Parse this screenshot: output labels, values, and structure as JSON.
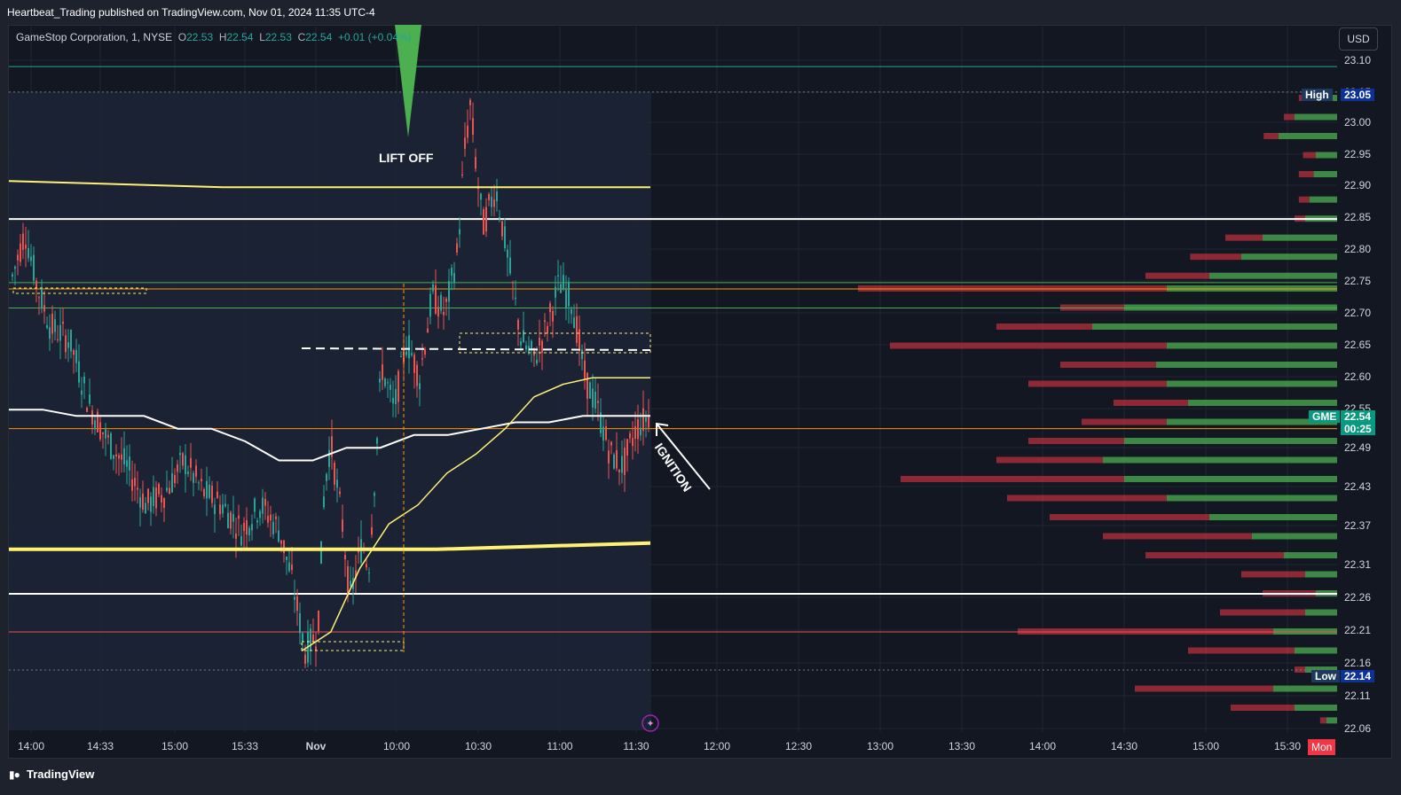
{
  "header": {
    "published_text": "Heartbeat_Trading published on TradingView.com, Nov 01, 2024 11:35 UTC-4"
  },
  "legend": {
    "symbol_text": "GameStop Corporation, 1, NYSE",
    "open_label": "O",
    "open_value": "22.53",
    "high_label": "H",
    "high_value": "22.54",
    "low_label": "L",
    "low_value": "22.53",
    "close_label": "C",
    "close_value": "22.54",
    "change_text": "+0.01 (+0.04%)"
  },
  "currency_button": "USD",
  "annotations": {
    "lift_off": "LIFT OFF",
    "ignition": "IGNITION"
  },
  "price_scale": {
    "ticks": [
      "23.10",
      "23.05",
      "23.00",
      "22.95",
      "22.90",
      "22.85",
      "22.80",
      "22.75",
      "22.70",
      "22.65",
      "22.60",
      "22.55",
      "22.49",
      "22.43",
      "22.37",
      "22.31",
      "22.26",
      "22.21",
      "22.16",
      "22.11",
      "22.06"
    ],
    "high_label": "High",
    "high_value": "23.05",
    "low_label": "Low",
    "low_value": "22.14",
    "symbol_label": "GME",
    "last_price": "22.54",
    "countdown": "00:25"
  },
  "time_scale": {
    "ticks": [
      "14:00",
      "14:33",
      "15:00",
      "15:33",
      "Nov",
      "10:00",
      "10:30",
      "11:00",
      "11:30",
      "12:00",
      "12:30",
      "13:00",
      "13:30",
      "14:00",
      "14:30",
      "15:00",
      "15:30"
    ],
    "day_badge": "Mon"
  },
  "footer": {
    "brand": "TradingView"
  },
  "colors": {
    "background": "#131722",
    "up_candle": "#26a69a",
    "down_candle": "#ef5350",
    "vwap_yellow": "#fff176",
    "level_white": "#ffffff",
    "level_green": "#4caf50",
    "level_orange": "#ff9800",
    "level_red": "#ef5350",
    "profile_green": "#4caf50",
    "profile_red": "#f23645",
    "lift_off_marker": "#4caf50",
    "accent_blue": "#2962ff"
  },
  "chart_data": {
    "type": "candlestick",
    "symbol": "GME",
    "interval": "1",
    "ylim": [
      22.04,
      23.12
    ],
    "horizontal_levels": [
      {
        "price": 23.09,
        "color": "#26a69a"
      },
      {
        "price": 23.05,
        "color": "#787b86"
      },
      {
        "price": 22.85,
        "color": "#ffffff"
      },
      {
        "price": 22.75,
        "color": "#4caf50"
      },
      {
        "price": 22.74,
        "color": "#ff9800"
      },
      {
        "price": 22.71,
        "color": "#4caf50"
      },
      {
        "price": 22.52,
        "color": "#ff9800"
      },
      {
        "price": 22.26,
        "color": "#ffffff"
      },
      {
        "price": 22.2,
        "color": "#ef5350"
      },
      {
        "price": 22.14,
        "color": "#787b86"
      }
    ],
    "ohlc_path": [
      {
        "t": 0,
        "c": 22.76
      },
      {
        "t": 0.02,
        "c": 22.83
      },
      {
        "t": 0.04,
        "c": 22.74
      },
      {
        "t": 0.06,
        "c": 22.68
      },
      {
        "t": 0.09,
        "c": 22.66
      },
      {
        "t": 0.12,
        "c": 22.56
      },
      {
        "t": 0.15,
        "c": 22.5
      },
      {
        "t": 0.18,
        "c": 22.46
      },
      {
        "t": 0.21,
        "c": 22.4
      },
      {
        "t": 0.24,
        "c": 22.42
      },
      {
        "t": 0.27,
        "c": 22.47
      },
      {
        "t": 0.3,
        "c": 22.42
      },
      {
        "t": 0.33,
        "c": 22.4
      },
      {
        "t": 0.36,
        "c": 22.36
      },
      {
        "t": 0.39,
        "c": 22.4
      },
      {
        "t": 0.42,
        "c": 22.36
      },
      {
        "t": 0.44,
        "c": 22.28
      },
      {
        "t": 0.46,
        "c": 22.17
      },
      {
        "t": 0.48,
        "c": 22.2
      },
      {
        "t": 0.49,
        "c": 22.42
      },
      {
        "t": 0.5,
        "c": 22.5
      },
      {
        "t": 0.52,
        "c": 22.36
      },
      {
        "t": 0.53,
        "c": 22.25
      },
      {
        "t": 0.55,
        "c": 22.34
      },
      {
        "t": 0.56,
        "c": 22.3
      },
      {
        "t": 0.57,
        "c": 22.45
      },
      {
        "t": 0.58,
        "c": 22.62
      },
      {
        "t": 0.6,
        "c": 22.55
      },
      {
        "t": 0.62,
        "c": 22.66
      },
      {
        "t": 0.64,
        "c": 22.6
      },
      {
        "t": 0.66,
        "c": 22.73
      },
      {
        "t": 0.68,
        "c": 22.7
      },
      {
        "t": 0.7,
        "c": 22.8
      },
      {
        "t": 0.71,
        "c": 22.95
      },
      {
        "t": 0.72,
        "c": 23.03
      },
      {
        "t": 0.73,
        "c": 22.92
      },
      {
        "t": 0.74,
        "c": 22.84
      },
      {
        "t": 0.76,
        "c": 22.9
      },
      {
        "t": 0.78,
        "c": 22.78
      },
      {
        "t": 0.8,
        "c": 22.66
      },
      {
        "t": 0.82,
        "c": 22.63
      },
      {
        "t": 0.84,
        "c": 22.68
      },
      {
        "t": 0.86,
        "c": 22.75
      },
      {
        "t": 0.88,
        "c": 22.72
      },
      {
        "t": 0.9,
        "c": 22.6
      },
      {
        "t": 0.92,
        "c": 22.55
      },
      {
        "t": 0.94,
        "c": 22.48
      },
      {
        "t": 0.96,
        "c": 22.46
      },
      {
        "t": 0.98,
        "c": 22.52
      },
      {
        "t": 1.0,
        "c": 22.54
      }
    ],
    "vwap_white": [
      22.55,
      22.55,
      22.54,
      22.54,
      22.54,
      22.52,
      22.52,
      22.5,
      22.47,
      22.47,
      22.49,
      22.49,
      22.51,
      22.51,
      22.52,
      22.53,
      22.53,
      22.54,
      22.54,
      22.54
    ],
    "vwap_yellow_upper": [
      22.91,
      22.9,
      22.9,
      22.9
    ],
    "vwap_yellow_lower": [
      22.33,
      22.33,
      22.33,
      22.34
    ],
    "anchored_vwap": [
      22.17,
      22.2,
      22.3,
      22.37,
      22.4,
      22.45,
      22.48,
      22.52,
      22.57,
      22.59,
      22.6,
      22.6,
      22.6
    ],
    "volume_profile": [
      {
        "price": 23.04,
        "up": 30,
        "down": 6
      },
      {
        "price": 23.01,
        "up": 40,
        "down": 10
      },
      {
        "price": 22.98,
        "up": 55,
        "down": 14
      },
      {
        "price": 22.95,
        "up": 20,
        "down": 12
      },
      {
        "price": 22.92,
        "up": 22,
        "down": 14
      },
      {
        "price": 22.88,
        "up": 26,
        "down": 10
      },
      {
        "price": 22.85,
        "up": 30,
        "down": 10
      },
      {
        "price": 22.82,
        "up": 70,
        "down": 35
      },
      {
        "price": 22.79,
        "up": 90,
        "down": 48
      },
      {
        "price": 22.76,
        "up": 120,
        "down": 60
      },
      {
        "price": 22.74,
        "up": 160,
        "down": 290
      },
      {
        "price": 22.71,
        "up": 200,
        "down": 60
      },
      {
        "price": 22.68,
        "up": 230,
        "down": 90
      },
      {
        "price": 22.65,
        "up": 160,
        "down": 260
      },
      {
        "price": 22.62,
        "up": 170,
        "down": 90
      },
      {
        "price": 22.59,
        "up": 160,
        "down": 130
      },
      {
        "price": 22.56,
        "up": 140,
        "down": 70
      },
      {
        "price": 22.53,
        "up": 160,
        "down": 80
      },
      {
        "price": 22.5,
        "up": 200,
        "down": 90
      },
      {
        "price": 22.47,
        "up": 220,
        "down": 100
      },
      {
        "price": 22.44,
        "up": 200,
        "down": 210
      },
      {
        "price": 22.41,
        "up": 160,
        "down": 150
      },
      {
        "price": 22.38,
        "up": 120,
        "down": 150
      },
      {
        "price": 22.35,
        "up": 80,
        "down": 140
      },
      {
        "price": 22.32,
        "up": 50,
        "down": 130
      },
      {
        "price": 22.29,
        "up": 30,
        "down": 60
      },
      {
        "price": 22.26,
        "up": 20,
        "down": 50
      },
      {
        "price": 22.23,
        "up": 30,
        "down": 80
      },
      {
        "price": 22.2,
        "up": 60,
        "down": 240
      },
      {
        "price": 22.17,
        "up": 40,
        "down": 100
      },
      {
        "price": 22.14,
        "up": 30,
        "down": 10
      },
      {
        "price": 22.11,
        "up": 60,
        "down": 130
      },
      {
        "price": 22.08,
        "up": 40,
        "down": 60
      },
      {
        "price": 22.06,
        "up": 10,
        "down": 6
      }
    ]
  }
}
